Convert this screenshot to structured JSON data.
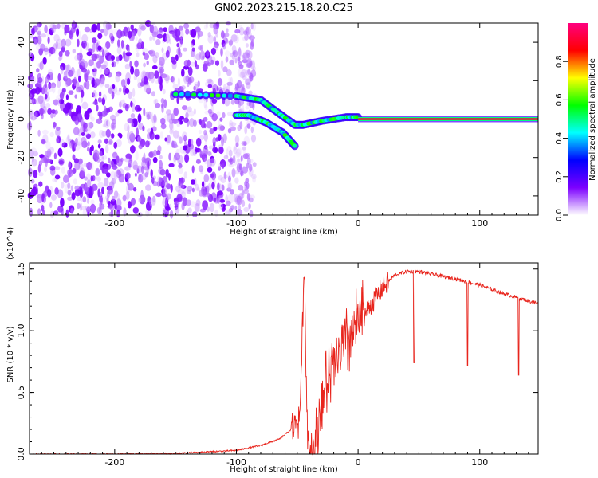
{
  "title": "GN02.2023.215.18.20.C25",
  "chart_data": [
    {
      "type": "heatmap",
      "xlabel": "Height of straight line (km)",
      "ylabel": "Frequency (Hz)",
      "xlim": [
        -270,
        148
      ],
      "ylim": [
        -50,
        50
      ],
      "xticks": [
        -200,
        -100,
        0,
        100
      ],
      "yticks": [
        -40,
        -20,
        0,
        20,
        40
      ],
      "colorbar": {
        "label": "Normalized spectral amplitude",
        "range": [
          0,
          1
        ],
        "ticks": [
          "0.0",
          "0.2",
          "0.4",
          "0.6",
          "0.8"
        ],
        "tick_values": [
          0,
          0.2,
          0.4,
          0.6,
          0.8
        ],
        "colormap": [
          "#ffffff",
          "#7c00ff",
          "#0000ff",
          "#00ffff",
          "#00ff00",
          "#ffff00",
          "#ff0000",
          "#ff0080"
        ]
      },
      "structures": {
        "noise_region": {
          "x": [
            -270,
            -95
          ],
          "f": [
            -50,
            50
          ]
        },
        "upper_track": {
          "x": [
            -150,
            -100,
            -80,
            -65,
            -52,
            -45,
            -30,
            -10,
            0
          ],
          "f": [
            13,
            12,
            10,
            3,
            -3,
            -3,
            -1,
            1,
            1
          ]
        },
        "lower_track": {
          "x": [
            -100,
            -90,
            -75,
            -62,
            -52
          ],
          "f": [
            2,
            2,
            -2,
            -7,
            -14
          ]
        },
        "constant_line": {
          "x": [
            0,
            148
          ],
          "f": 0
        }
      }
    },
    {
      "type": "line",
      "xlabel": "Height of straight line (km)",
      "ylabel": "SNR (10 * v/v)",
      "exponent": "(x10^4)",
      "xlim": [
        -270,
        148
      ],
      "ylim": [
        0,
        1.55
      ],
      "xticks": [
        -200,
        -100,
        0,
        100
      ],
      "yticks": [
        "0.0",
        "0.5",
        "1.0",
        "1.5"
      ],
      "ytick_values": [
        0,
        0.5,
        1.0,
        1.5
      ],
      "color": "#e8241c",
      "series": [
        {
          "x": [
            -270,
            -200,
            -150,
            -100,
            -80,
            -65,
            -55,
            -48,
            -44,
            -42,
            -40,
            -35,
            -30,
            -20,
            -10,
            0,
            10,
            20,
            30,
            40,
            50,
            60,
            80,
            100,
            120,
            148
          ],
          "y": [
            0.0,
            0.0,
            0.005,
            0.03,
            0.07,
            0.12,
            0.2,
            0.3,
            1.5,
            0.25,
            0.05,
            0.06,
            0.45,
            0.7,
            0.9,
            1.05,
            1.2,
            1.35,
            1.45,
            1.48,
            1.48,
            1.46,
            1.42,
            1.37,
            1.3,
            1.22
          ]
        }
      ],
      "dropouts": [
        {
          "x": 46,
          "y": 0.74
        },
        {
          "x": 90,
          "y": 0.72
        },
        {
          "x": 132,
          "y": 0.64
        }
      ]
    }
  ]
}
